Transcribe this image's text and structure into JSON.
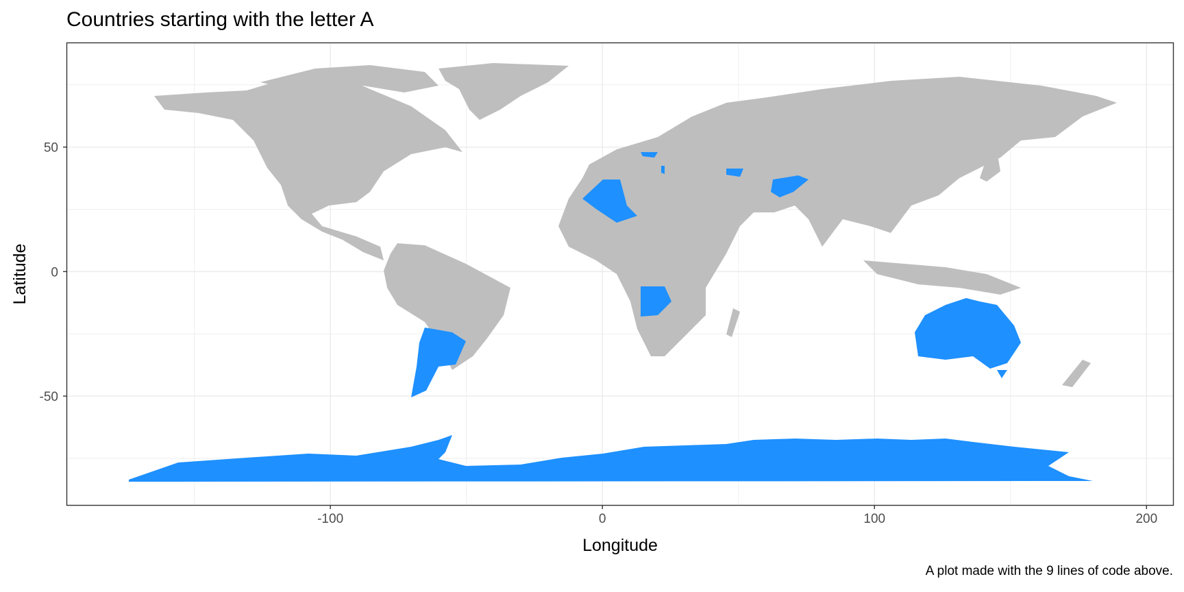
{
  "title": "Countries starting with the letter A",
  "caption": "A plot made with the 9 lines of code above.",
  "colors": {
    "land": "#bebebe",
    "highlight": "#1e90ff",
    "grid": "#ebebeb",
    "panel_border": "#333333"
  },
  "chart_data": {
    "type": "map",
    "title": "Countries starting with the letter A",
    "xlabel": "Longitude",
    "ylabel": "Latitude",
    "xlim": [
      -197,
      210
    ],
    "ylim": [
      -94,
      92
    ],
    "x_ticks": [
      -100,
      0,
      100,
      200
    ],
    "y_ticks": [
      50,
      0,
      -50
    ],
    "grid": true,
    "highlighted_countries": [
      "Afghanistan",
      "Albania",
      "Algeria",
      "Angola",
      "Antarctica",
      "Argentina",
      "Armenia",
      "Australia",
      "Austria",
      "Azerbaijan"
    ]
  }
}
